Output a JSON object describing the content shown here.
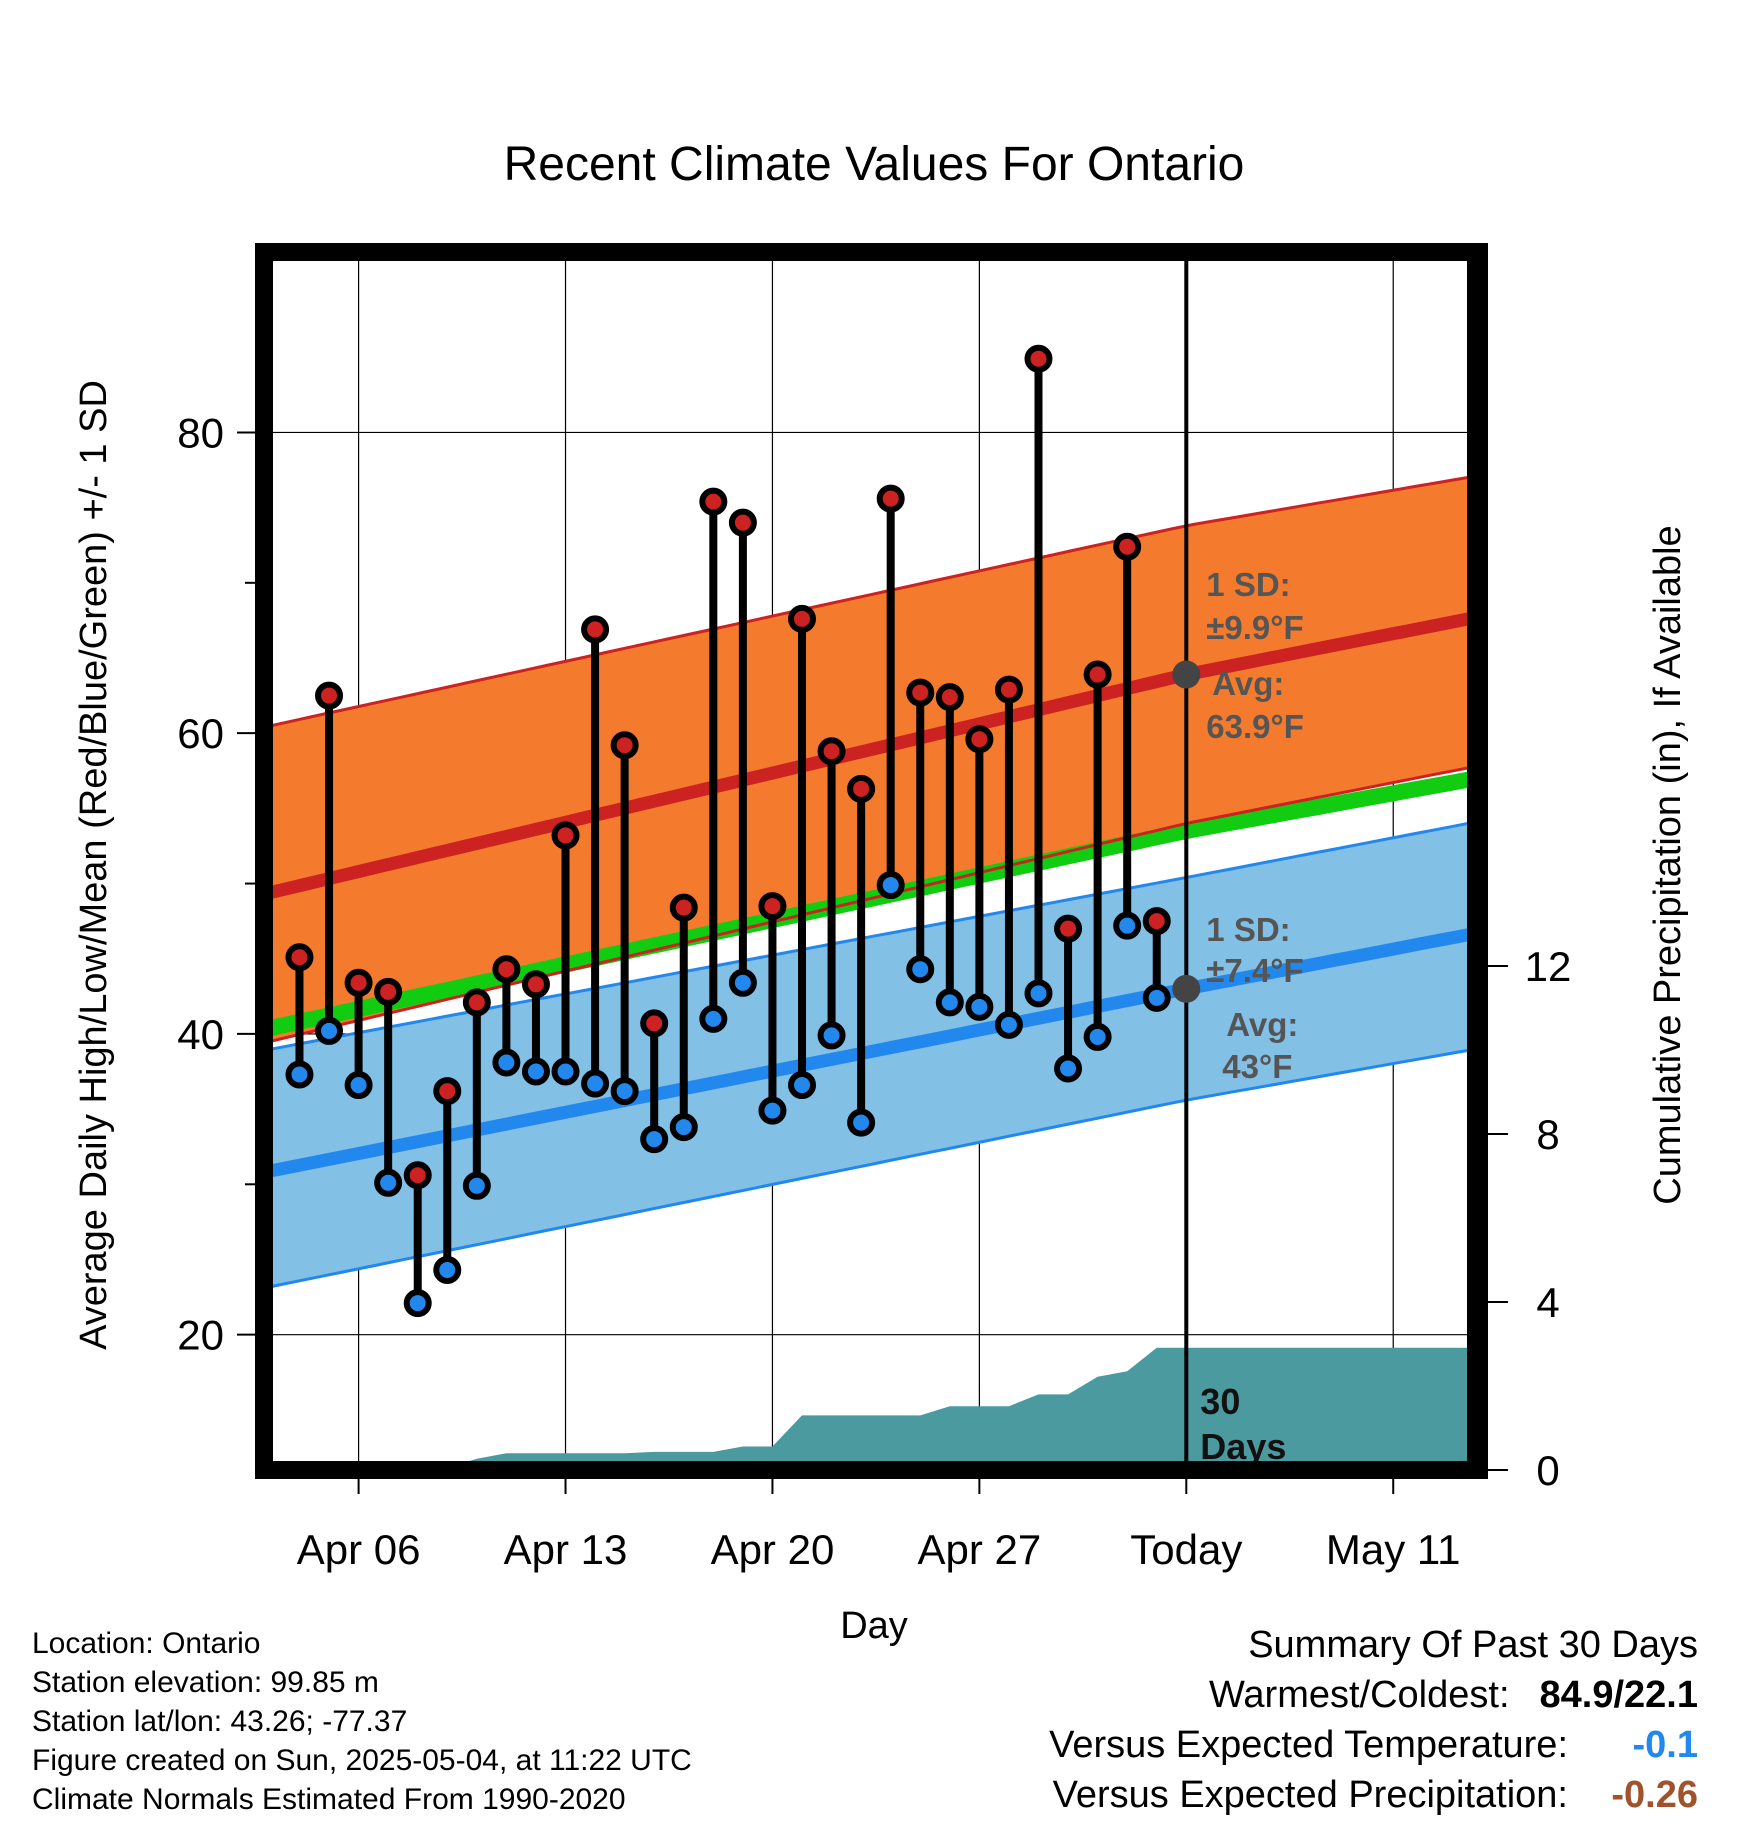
{
  "chart_data": {
    "type": "line",
    "title": "Recent Climate Values For Ontario",
    "xlabel": "Day",
    "ylabel": "Average Daily High/Low/Mean (Red/Blue/Green) +/- 1 SD",
    "y2label": "Cumulative Precipitation (in), If Available",
    "ylim": [
      11,
      92
    ],
    "y2lim": [
      0,
      29
    ],
    "y_ticks": [
      20,
      40,
      60,
      80
    ],
    "y2_ticks": [
      0,
      4,
      8,
      12
    ],
    "x_ticks": [
      "Apr 06",
      "Apr 13",
      "Apr 20",
      "Apr 27",
      "Today",
      "May 11"
    ],
    "x_tick_days": [
      6,
      13,
      20,
      27,
      34,
      41
    ],
    "xlim": [
      2.8,
      43.8
    ],
    "grid": true,
    "days": [
      4,
      5,
      6,
      7,
      8,
      9,
      10,
      11,
      12,
      13,
      14,
      15,
      16,
      17,
      18,
      19,
      20,
      21,
      22,
      23,
      24,
      25,
      26,
      27,
      28,
      29,
      30,
      31,
      32,
      33
    ],
    "series": [
      {
        "name": "High",
        "color": "#cc2222",
        "values": [
          45.1,
          62.5,
          43.4,
          42.8,
          30.6,
          36.2,
          42.1,
          44.3,
          43.3,
          53.2,
          66.9,
          59.2,
          40.7,
          48.4,
          75.4,
          74.0,
          48.5,
          67.6,
          58.8,
          56.3,
          75.6,
          62.7,
          62.4,
          59.6,
          62.9,
          84.9,
          47.0,
          63.9,
          72.4,
          47.5
        ]
      },
      {
        "name": "Low",
        "color": "#2288ee",
        "values": [
          37.3,
          40.2,
          36.6,
          30.1,
          22.1,
          24.3,
          29.9,
          38.1,
          37.5,
          37.5,
          36.7,
          36.2,
          33.0,
          33.8,
          41.0,
          43.4,
          34.9,
          36.6,
          39.9,
          34.1,
          49.9,
          44.3,
          42.1,
          41.8,
          40.6,
          42.7,
          37.7,
          39.8,
          47.2,
          42.4
        ]
      }
    ],
    "normal_bands": {
      "high_avg": [
        49.3,
        63.9,
        67.7
      ],
      "high_lower": [
        39.4,
        54.0,
        57.8
      ],
      "high_upper": [
        60.4,
        73.8,
        77.1
      ],
      "mean_avg": [
        40.3,
        53.5,
        57.0
      ],
      "low_avg": [
        30.8,
        43.0,
        46.7
      ],
      "low_lower": [
        23.1,
        35.6,
        39.0
      ],
      "low_upper": [
        38.9,
        50.4,
        54.1
      ],
      "band_days": [
        2.8,
        34,
        43.8
      ]
    },
    "precip_cumulative": {
      "days": [
        3,
        6,
        7,
        8,
        9,
        10,
        11,
        12,
        13,
        14,
        15,
        16,
        17,
        18,
        19,
        20,
        21,
        22,
        23,
        24,
        25,
        26,
        27,
        28,
        29,
        30,
        31,
        32,
        33,
        43.8
      ],
      "values": [
        0,
        0,
        0.05,
        0.05,
        0.05,
        0.27,
        0.4,
        0.4,
        0.4,
        0.4,
        0.4,
        0.43,
        0.43,
        0.43,
        0.56,
        0.56,
        1.3,
        1.3,
        1.3,
        1.3,
        1.3,
        1.52,
        1.52,
        1.52,
        1.8,
        1.8,
        2.22,
        2.35,
        2.91,
        2.91
      ]
    },
    "annotations": {
      "high_sd_label": "1 SD:",
      "high_sd_value": "±9.9°F",
      "high_avg_label": "Avg:",
      "high_avg_value": "63.9°F",
      "low_sd_label": "1 SD:",
      "low_sd_value": "±7.4°F",
      "low_avg_label": "Avg:",
      "low_avg_value": "43°F",
      "days_label_1": "30",
      "days_label_2": "Days"
    },
    "colors": {
      "high_band": "#f47a2d",
      "high_line": "#cc2222",
      "mean_line": "#11cc11",
      "low_band": "#82c0e6",
      "low_line": "#2288ee",
      "precip": "#4a9aa0",
      "marker_high": "#cc2222",
      "marker_low": "#2288ee",
      "today_dot": "#444444"
    }
  },
  "footer": {
    "location": "Location: Ontario",
    "elevation": "Station elevation: 99.85 m",
    "latlon": "Station lat/lon: 43.26; -77.37",
    "created": "Figure created on Sun, 2025-05-04, at 11:22 UTC",
    "normals": "Climate Normals Estimated From 1990-2020"
  },
  "summary": {
    "heading": "Summary Of Past 30 Days",
    "warm_cold_label": "Warmest/Coldest:",
    "warm_cold_value": "84.9/22.1",
    "temp_label": "Versus Expected Temperature:",
    "temp_value": "-0.1",
    "temp_color": "#2288ee",
    "precip_label": "Versus Expected Precipitation:",
    "precip_value": "-0.26",
    "precip_color": "#a0522d"
  }
}
